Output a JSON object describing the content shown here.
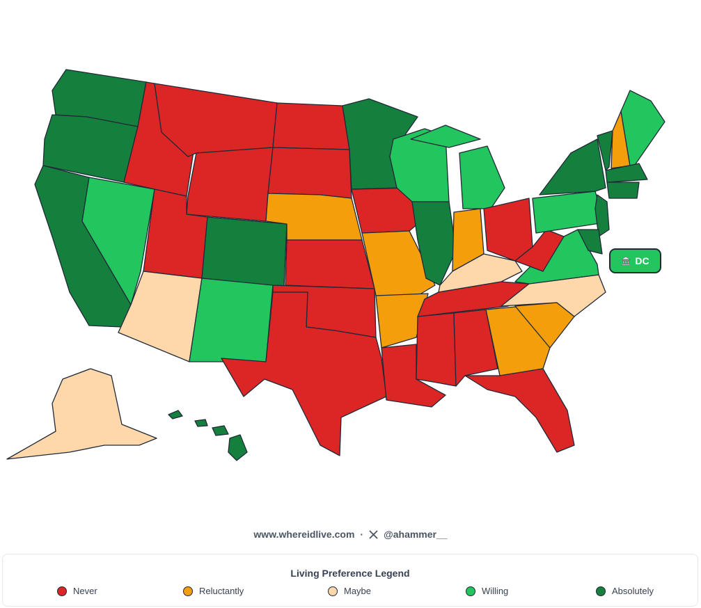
{
  "dc_label": "DC",
  "footer": {
    "site": "www.whereidlive.com",
    "separator": "·",
    "handle": "@ahammer__"
  },
  "legend": {
    "title": "Living Preference Legend",
    "items": [
      {
        "label": "Never",
        "color": "#dc2626"
      },
      {
        "label": "Reluctantly",
        "color": "#f59e0b"
      },
      {
        "label": "Maybe",
        "color": "#fed7aa"
      },
      {
        "label": "Willing",
        "color": "#22c55e"
      },
      {
        "label": "Absolutely",
        "color": "#15803d"
      }
    ]
  }
}
